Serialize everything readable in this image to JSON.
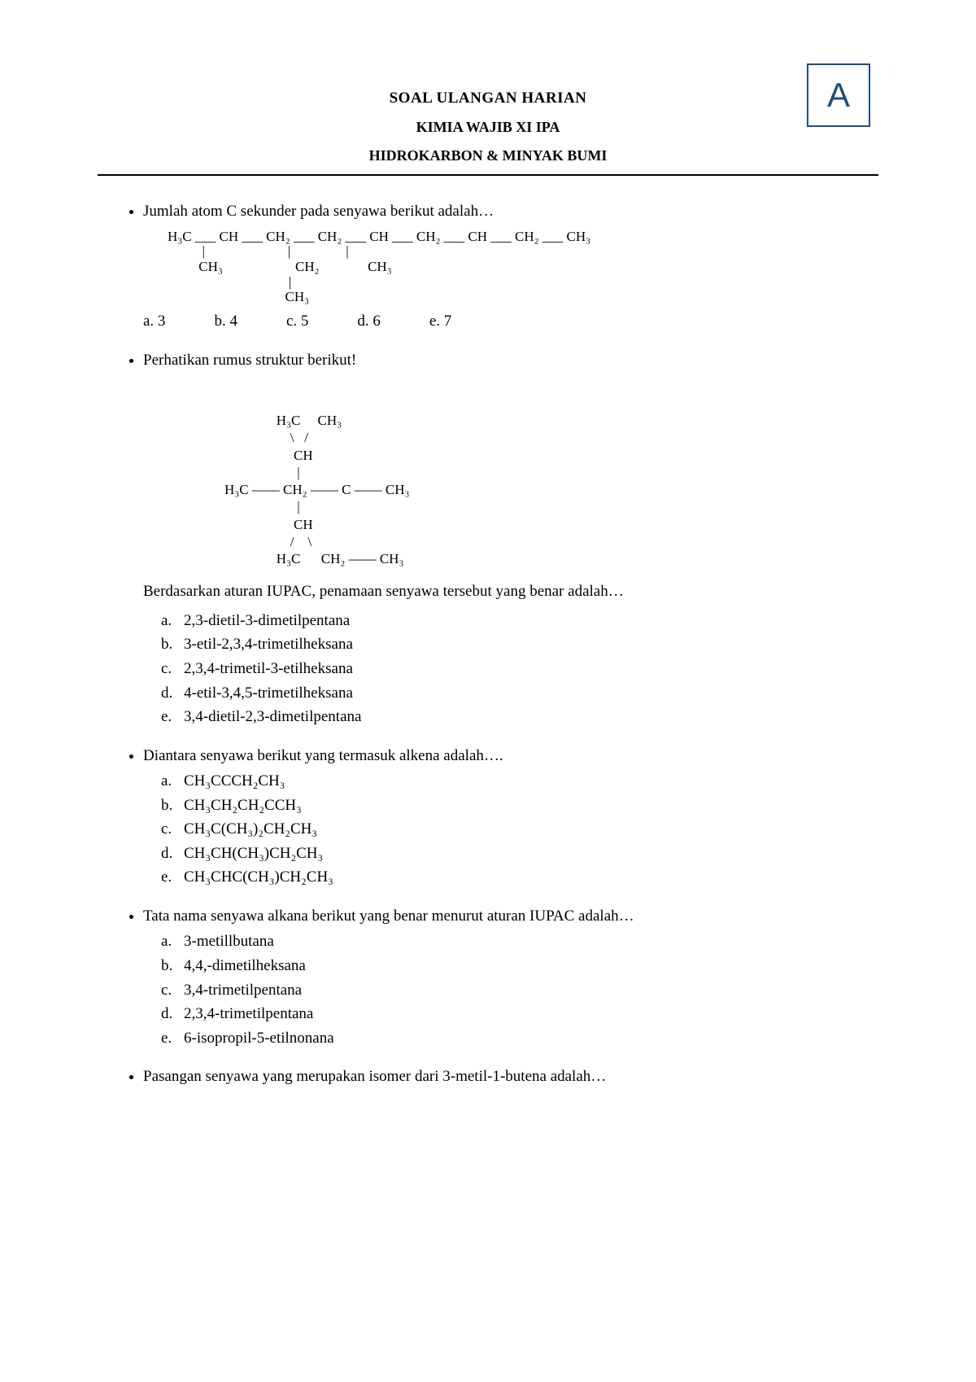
{
  "variant": "A",
  "header": {
    "line1": "SOAL ULANGAN HARIAN",
    "line2": "KIMIA WAJIB XI IPA",
    "line3": "HIDROKARBON & MINYAK BUMI"
  },
  "q1": {
    "text": "Jumlah atom C sekunder pada senyawa berikut adalah…",
    "chain_row1": "H₃C ___ CH ___ CH₂ ___ CH₂ ___ CH ___ CH₂ ___ CH ___ CH₂ ___ CH₃",
    "chain_row2": "          |                        |                |",
    "chain_row3": "         CH₃                     CH₂              CH₃",
    "chain_row4": "                                   |",
    "chain_row5": "                                  CH₃",
    "opts": {
      "a": "a.  3",
      "b": "b. 4",
      "c": "c. 5",
      "d": "d. 6",
      "e": "e. 7"
    }
  },
  "q2": {
    "text": "Perhatikan rumus struktur berikut!",
    "struct_l1": "               H₃C     CH₃",
    "struct_l2": "                   \\   /",
    "struct_l3": "                    CH",
    "struct_l4": "                     |",
    "struct_l5": "H₃C —— CH₂ —— C —— CH₃",
    "struct_l6": "                     |",
    "struct_l7": "                    CH",
    "struct_l8": "                   /    \\",
    "struct_l9": "               H₃C      CH₂ —— CH₃",
    "follow": "Berdasarkan aturan IUPAC, penamaan senyawa tersebut yang benar adalah…",
    "opts": {
      "a": "2,3-dietil-3-dimetilpentana",
      "b": "3-etil-2,3,4-trimetilheksana",
      "c": "2,3,4-trimetil-3-etilheksana",
      "d": "4-etil-3,4,5-trimetilheksana",
      "e": "3,4-dietil-2,3-dimetilpentana"
    }
  },
  "q3": {
    "text": "Diantara senyawa berikut yang termasuk alkena adalah….",
    "opts": {
      "a": "CH₃CCCH₂CH₃",
      "b": "CH₃CH₂CH₂CCH₃",
      "c": "CH₃C(CH₃)₂CH₂CH₃",
      "d": "CH₃CH(CH₃)CH₂CH₃",
      "e": "CH₃CHC(CH₃)CH₂CH₃"
    }
  },
  "q4": {
    "text": "Tata nama senyawa alkana berikut yang benar menurut aturan IUPAC adalah…",
    "opts": {
      "a": "3-metillbutana",
      "b": "4,4,-dimetilheksana",
      "c": "3,4-trimetilpentana",
      "d": "2,3,4-trimetilpentana",
      "e": "6-isopropil-5-etilnonana"
    }
  },
  "q5": {
    "text": "Pasangan senyawa yang merupakan isomer dari 3-metil-1-butena adalah…"
  },
  "labels": {
    "a": "a.",
    "b": "b.",
    "c": "c.",
    "d": "d.",
    "e": "e."
  }
}
